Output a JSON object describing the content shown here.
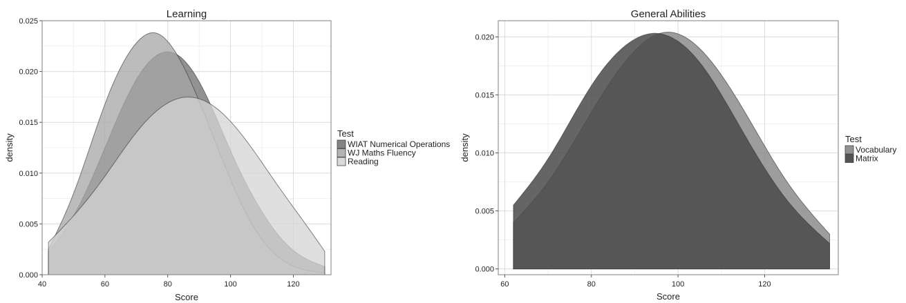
{
  "chart_data": [
    {
      "type": "area",
      "title": "Learning",
      "xlabel": "Score",
      "ylabel": "density",
      "xlim": [
        40,
        132
      ],
      "ylim": [
        0,
        0.025
      ],
      "x_ticks": [
        40,
        60,
        80,
        100,
        120
      ],
      "y_ticks": [
        0.0,
        0.005,
        0.01,
        0.015,
        0.02,
        0.025
      ],
      "y_tick_labels": [
        "0.000",
        "0.005",
        "0.010",
        "0.015",
        "0.020",
        "0.025"
      ],
      "grid": true,
      "legend_title": "Test",
      "legend_position": "right",
      "x_range": [
        42,
        130
      ],
      "series": [
        {
          "name": "WIAT Numerical Operations",
          "color": "#6e6e6e",
          "opacity": 0.75,
          "x": [
            42,
            50,
            60,
            70,
            81,
            90,
            100,
            110,
            120,
            130
          ],
          "y": [
            0.0023,
            0.0058,
            0.0125,
            0.0192,
            0.0219,
            0.019,
            0.0122,
            0.0062,
            0.0024,
            0.0008
          ]
        },
        {
          "name": "WJ Maths Fluency",
          "color": "#a6a6a6",
          "opacity": 0.75,
          "x": [
            42,
            50,
            60,
            70,
            76,
            85,
            95,
            105,
            115,
            130
          ],
          "y": [
            0.0025,
            0.008,
            0.0168,
            0.0228,
            0.0238,
            0.0205,
            0.0132,
            0.006,
            0.0018,
            0.0002
          ]
        },
        {
          "name": "Reading",
          "color": "#d4d4d4",
          "opacity": 0.75,
          "x": [
            42,
            50,
            60,
            70,
            84,
            95,
            105,
            115,
            125,
            130
          ],
          "y": [
            0.0032,
            0.0058,
            0.0097,
            0.014,
            0.0174,
            0.0165,
            0.0132,
            0.0088,
            0.0045,
            0.0023
          ]
        }
      ]
    },
    {
      "type": "area",
      "title": "General Abilities",
      "xlabel": "Score",
      "ylabel": "density",
      "xlim": [
        58.5,
        137
      ],
      "ylim": [
        -0.0005,
        0.0214
      ],
      "x_ticks": [
        60,
        80,
        100,
        120
      ],
      "y_ticks": [
        0.0,
        0.005,
        0.01,
        0.015,
        0.02
      ],
      "y_tick_labels": [
        "0.000",
        "0.005",
        "0.010",
        "0.015",
        "0.020"
      ],
      "grid": true,
      "legend_title": "Test",
      "legend_position": "right",
      "x_range": [
        62,
        135
      ],
      "series": [
        {
          "name": "Vocabulary",
          "color": "#8c8c8c",
          "opacity": 0.85,
          "x": [
            62,
            70,
            80,
            90,
            97,
            105,
            115,
            125,
            135
          ],
          "y": [
            0.004,
            0.0075,
            0.0135,
            0.0188,
            0.0204,
            0.019,
            0.0138,
            0.0076,
            0.003
          ]
        },
        {
          "name": "Matrix",
          "color": "#4a4a4a",
          "opacity": 0.85,
          "x": [
            62,
            70,
            80,
            90,
            94,
            105,
            115,
            125,
            135
          ],
          "y": [
            0.0055,
            0.0095,
            0.0158,
            0.0198,
            0.0203,
            0.0178,
            0.0118,
            0.006,
            0.0022
          ]
        }
      ]
    }
  ]
}
